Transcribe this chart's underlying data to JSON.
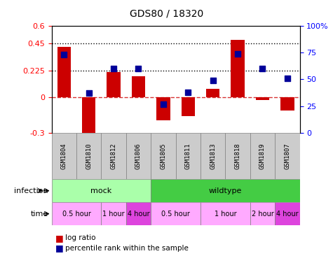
{
  "title": "GDS80 / 18320",
  "samples": [
    "GSM1804",
    "GSM1810",
    "GSM1812",
    "GSM1806",
    "GSM1805",
    "GSM1811",
    "GSM1813",
    "GSM1818",
    "GSM1819",
    "GSM1807"
  ],
  "log_ratio": [
    0.42,
    -0.305,
    0.21,
    0.175,
    -0.195,
    -0.16,
    0.07,
    0.48,
    -0.025,
    -0.11
  ],
  "percentile": [
    73,
    37,
    60,
    60,
    27,
    38,
    49,
    74,
    60,
    51
  ],
  "ylim_left": [
    -0.3,
    0.6
  ],
  "ylim_right": [
    0,
    100
  ],
  "yticks_left": [
    -0.3,
    0,
    0.225,
    0.45,
    0.6
  ],
  "yticks_right": [
    0,
    25,
    50,
    75,
    100
  ],
  "dotted_lines": [
    0.45,
    0.225
  ],
  "bar_color": "#cc0000",
  "dot_color": "#000099",
  "zero_line_color": "#cc0000",
  "bg_color": "#ffffff",
  "plot_bg": "#ffffff",
  "sample_box_color": "#cccccc",
  "infection_mock": {
    "label": "mock",
    "start": 0,
    "end": 4,
    "color": "#aaffaa"
  },
  "infection_wildtype": {
    "label": "wildtype",
    "start": 4,
    "end": 10,
    "color": "#44cc44"
  },
  "time_blocks": [
    {
      "label": "0.5 hour",
      "start": 0,
      "end": 2,
      "color": "#ffaaff"
    },
    {
      "label": "1 hour",
      "start": 2,
      "end": 3,
      "color": "#ffaaff"
    },
    {
      "label": "4 hour",
      "start": 3,
      "end": 4,
      "color": "#dd44dd"
    },
    {
      "label": "0.5 hour",
      "start": 4,
      "end": 6,
      "color": "#ffaaff"
    },
    {
      "label": "1 hour",
      "start": 6,
      "end": 8,
      "color": "#ffaaff"
    },
    {
      "label": "2 hour",
      "start": 8,
      "end": 9,
      "color": "#ffaaff"
    },
    {
      "label": "4 hour",
      "start": 9,
      "end": 10,
      "color": "#dd44dd"
    }
  ],
  "legend_log_ratio": "log ratio",
  "legend_percentile": "percentile rank within the sample",
  "infection_label": "infection",
  "time_label": "time",
  "bar_width": 0.55,
  "dot_size": 40,
  "n_samples": 10
}
